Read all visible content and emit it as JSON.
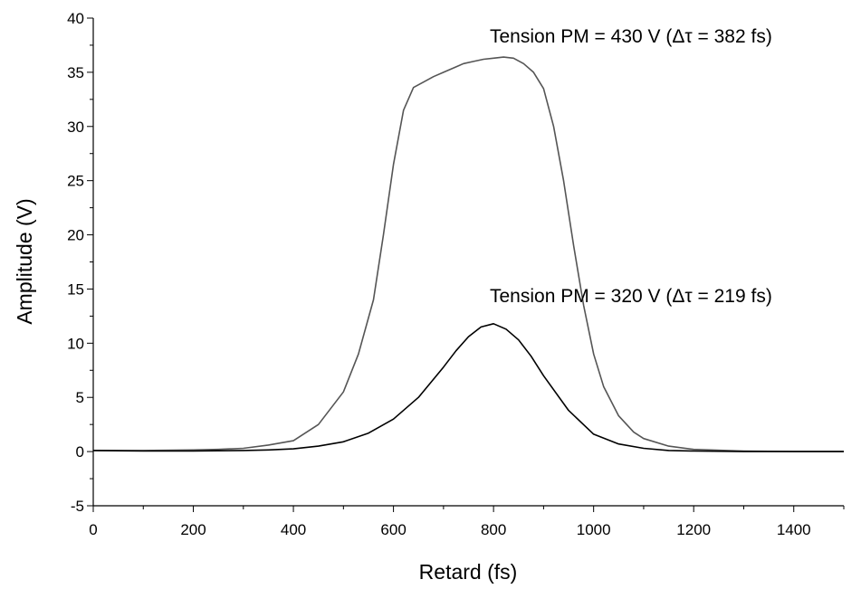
{
  "chart_data": {
    "type": "line",
    "title": "",
    "xlabel": "Retard (fs)",
    "ylabel": "Amplitude (V)",
    "xlim": [
      0,
      1500
    ],
    "ylim": [
      -5,
      40
    ],
    "x_ticks": [
      0,
      200,
      400,
      600,
      800,
      1000,
      1200,
      1400
    ],
    "y_ticks": [
      -5,
      0,
      5,
      10,
      15,
      20,
      25,
      30,
      35,
      40
    ],
    "grid": false,
    "legend": "none",
    "series": [
      {
        "color": "#555555",
        "x": [
          0,
          100,
          200,
          250,
          300,
          350,
          400,
          450,
          500,
          530,
          560,
          580,
          600,
          620,
          640,
          660,
          680,
          700,
          720,
          740,
          760,
          780,
          800,
          820,
          840,
          860,
          880,
          900,
          920,
          940,
          960,
          980,
          1000,
          1020,
          1050,
          1080,
          1100,
          1150,
          1200,
          1300,
          1400,
          1500
        ],
        "y": [
          0.1,
          0.1,
          0.15,
          0.2,
          0.3,
          0.6,
          1.0,
          2.5,
          5.5,
          9.0,
          14.0,
          20.0,
          26.5,
          31.5,
          33.6,
          34.1,
          34.6,
          35.0,
          35.4,
          35.8,
          36.0,
          36.2,
          36.3,
          36.4,
          36.3,
          35.8,
          35.0,
          33.5,
          30.0,
          25.0,
          19.0,
          13.5,
          9.0,
          6.0,
          3.3,
          1.8,
          1.2,
          0.5,
          0.2,
          0.05,
          0.0,
          0.0
        ]
      },
      {
        "color": "#000000",
        "x": [
          0,
          100,
          200,
          300,
          350,
          400,
          450,
          500,
          550,
          600,
          650,
          700,
          725,
          750,
          775,
          800,
          825,
          850,
          875,
          900,
          950,
          1000,
          1050,
          1100,
          1150,
          1200,
          1300,
          1400,
          1500
        ],
        "y": [
          0.1,
          0.05,
          0.05,
          0.1,
          0.15,
          0.25,
          0.5,
          0.9,
          1.7,
          3.0,
          5.0,
          7.8,
          9.3,
          10.6,
          11.5,
          11.8,
          11.3,
          10.3,
          8.8,
          7.0,
          3.8,
          1.6,
          0.7,
          0.3,
          0.1,
          0.05,
          0.0,
          0.0,
          0.0
        ]
      }
    ],
    "annotations": [
      {
        "text": "Tension PM = 430 V (Δτ = 382 fs)"
      },
      {
        "text": "Tension PM = 320 V (Δτ = 219 fs)"
      }
    ]
  }
}
